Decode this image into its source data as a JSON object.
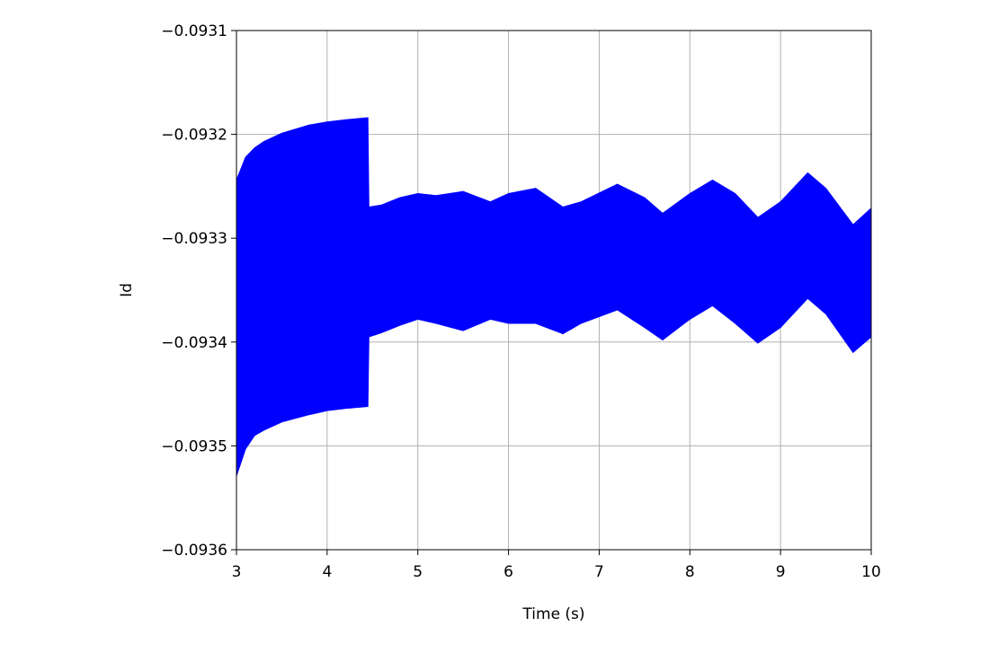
{
  "chart_data": {
    "type": "range_area",
    "xlabel": "Time (s)",
    "ylabel": "Id",
    "color": "#0000ff",
    "grid": true,
    "x": [
      3.0,
      3.1,
      3.2,
      3.3,
      3.5,
      3.8,
      4.0,
      4.2,
      4.45,
      4.46,
      4.6,
      4.8,
      5.0,
      5.2,
      5.5,
      5.8,
      6.0,
      6.3,
      6.6,
      6.8,
      7.2,
      7.5,
      7.7,
      8.0,
      8.25,
      8.5,
      8.75,
      9.0,
      9.3,
      9.5,
      9.8,
      10.0
    ],
    "high": [
      -0.093244,
      -0.093222,
      -0.093213,
      -0.093207,
      -0.093199,
      -0.093191,
      -0.093188,
      -0.093186,
      -0.093184,
      -0.09327,
      -0.093268,
      -0.093261,
      -0.093257,
      -0.093259,
      -0.093255,
      -0.093265,
      -0.093257,
      -0.093252,
      -0.09327,
      -0.093265,
      -0.093248,
      -0.093261,
      -0.093276,
      -0.093257,
      -0.093244,
      -0.093257,
      -0.09328,
      -0.093265,
      -0.093237,
      -0.093252,
      -0.093287,
      -0.093271
    ],
    "low": [
      -0.093529,
      -0.093503,
      -0.09349,
      -0.093485,
      -0.093477,
      -0.09347,
      -0.093466,
      -0.093464,
      -0.093462,
      -0.093395,
      -0.093391,
      -0.093384,
      -0.093378,
      -0.093382,
      -0.093389,
      -0.093378,
      -0.093382,
      -0.093382,
      -0.093392,
      -0.093382,
      -0.093369,
      -0.093386,
      -0.093398,
      -0.093378,
      -0.093365,
      -0.093382,
      -0.093401,
      -0.093386,
      -0.093358,
      -0.093373,
      -0.09341,
      -0.093395
    ],
    "xlim": [
      3,
      10
    ],
    "xticks": [
      3,
      4,
      5,
      6,
      7,
      8,
      9,
      10
    ],
    "ylim": [
      -0.0936,
      -0.0931
    ],
    "yticks": [
      {
        "value": -0.0936,
        "label": "−0.0936"
      },
      {
        "value": -0.0935,
        "label": "−0.0935"
      },
      {
        "value": -0.0934,
        "label": "−0.0934"
      },
      {
        "value": -0.0933,
        "label": "−0.0933"
      },
      {
        "value": -0.0932,
        "label": "−0.0932"
      },
      {
        "value": -0.0931,
        "label": "−0.0931"
      }
    ]
  }
}
